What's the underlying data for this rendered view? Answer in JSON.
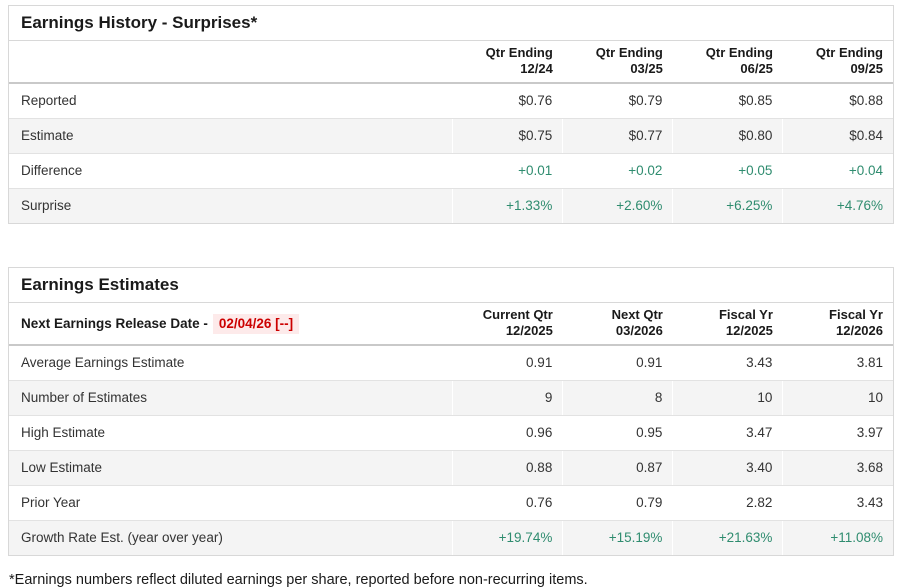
{
  "page": {
    "footnote": "*Earnings numbers reflect diluted earnings per share, reported before non-recurring items."
  },
  "colors": {
    "positive_green": "#2f8c6f",
    "alert_red": "#cc0000",
    "alert_red_bg": "#fdeaea",
    "row_alt_bg": "#f4f4f4",
    "border_gray": "#d8d8d8"
  },
  "earnings_history": {
    "title": "Earnings History - Surprises*",
    "columns": [
      {
        "line1": "Qtr Ending",
        "line2": "12/24"
      },
      {
        "line1": "Qtr Ending",
        "line2": "03/25"
      },
      {
        "line1": "Qtr Ending",
        "line2": "06/25"
      },
      {
        "line1": "Qtr Ending",
        "line2": "09/25"
      }
    ],
    "rows": [
      {
        "label": "Reported",
        "values": [
          "$0.76",
          "$0.79",
          "$0.85",
          "$0.88"
        ],
        "positive": false
      },
      {
        "label": "Estimate",
        "values": [
          "$0.75",
          "$0.77",
          "$0.80",
          "$0.84"
        ],
        "positive": false
      },
      {
        "label": "Difference",
        "values": [
          "+0.01",
          "+0.02",
          "+0.05",
          "+0.04"
        ],
        "positive": true
      },
      {
        "label": "Surprise",
        "values": [
          "+1.33%",
          "+2.60%",
          "+6.25%",
          "+4.76%"
        ],
        "positive": true
      }
    ]
  },
  "earnings_estimates": {
    "title": "Earnings Estimates",
    "release_label": "Next Earnings Release Date -",
    "release_date": "02/04/26 [--]",
    "columns": [
      {
        "line1": "Current Qtr",
        "line2": "12/2025"
      },
      {
        "line1": "Next Qtr",
        "line2": "03/2026"
      },
      {
        "line1": "Fiscal Yr",
        "line2": "12/2025"
      },
      {
        "line1": "Fiscal Yr",
        "line2": "12/2026"
      }
    ],
    "rows": [
      {
        "label": "Average Earnings Estimate",
        "values": [
          "0.91",
          "0.91",
          "3.43",
          "3.81"
        ],
        "positive": false
      },
      {
        "label": "Number of Estimates",
        "values": [
          "9",
          "8",
          "10",
          "10"
        ],
        "positive": false
      },
      {
        "label": "High Estimate",
        "values": [
          "0.96",
          "0.95",
          "3.47",
          "3.97"
        ],
        "positive": false
      },
      {
        "label": "Low Estimate",
        "values": [
          "0.88",
          "0.87",
          "3.40",
          "3.68"
        ],
        "positive": false
      },
      {
        "label": "Prior Year",
        "values": [
          "0.76",
          "0.79",
          "2.82",
          "3.43"
        ],
        "positive": false
      },
      {
        "label": "Growth Rate Est. (year over year)",
        "values": [
          "+19.74%",
          "+15.19%",
          "+21.63%",
          "+11.08%"
        ],
        "positive": true
      }
    ]
  }
}
